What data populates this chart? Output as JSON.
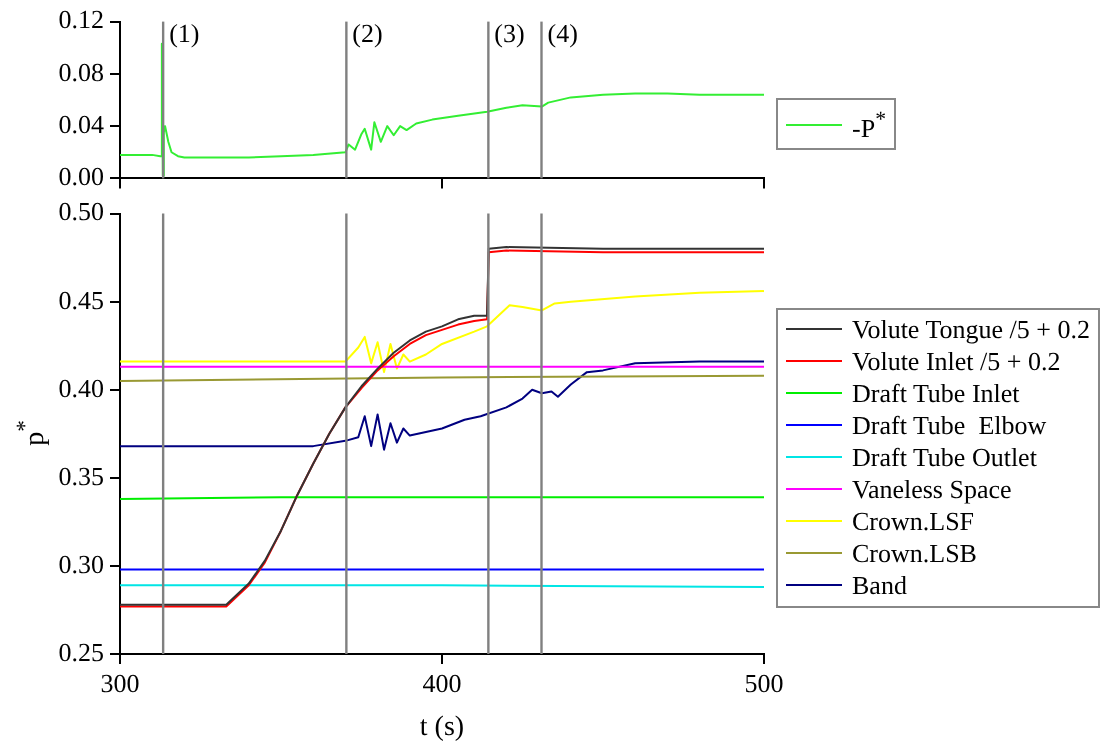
{
  "chart_data": [
    {
      "type": "line",
      "xlim": [
        300,
        500
      ],
      "xticks": [
        300,
        400,
        500
      ],
      "ylim": [
        0,
        0.12
      ],
      "yticks": [
        {
          "value": 0,
          "label": "0.00"
        },
        0.04,
        0.08,
        0.12
      ],
      "tick_labels": "y",
      "grid": false,
      "legend": "right",
      "marker": "none",
      "ref_lines": [
        {
          "axis": "x",
          "value": 313.4,
          "color": "#808080"
        },
        {
          "axis": "x",
          "value": 370.3,
          "color": "#808080"
        },
        {
          "axis": "x",
          "value": 414.4,
          "color": "#808080"
        },
        {
          "axis": "x",
          "value": 430.9,
          "color": "#808080"
        }
      ],
      "annotations": [
        {
          "text": "(1)",
          "x": 313.4,
          "y": 0.11
        },
        {
          "text": "(2)",
          "x": 370.3,
          "y": 0.11
        },
        {
          "text": "(3)",
          "x": 414.4,
          "y": 0.11
        },
        {
          "text": "(4)",
          "x": 430.9,
          "y": 0.11
        }
      ],
      "series": [
        {
          "name": "-P$^{*}$",
          "color": "#33ee33",
          "x": [
            300,
            305,
            310,
            312.5,
            313,
            313.3,
            313.6,
            314,
            315,
            316,
            318,
            320,
            330,
            340,
            350,
            360,
            370,
            371,
            373,
            375,
            376,
            378,
            379,
            381,
            383,
            385,
            387,
            389,
            392,
            397,
            405,
            414,
            420,
            425,
            431,
            433,
            440,
            450,
            460,
            470,
            480,
            490,
            500
          ],
          "values": [
            0.018,
            0.018,
            0.018,
            0.017,
            0.103,
            0.002,
            0.035,
            0.04,
            0.028,
            0.02,
            0.017,
            0.016,
            0.016,
            0.016,
            0.017,
            0.018,
            0.02,
            0.026,
            0.022,
            0.034,
            0.038,
            0.022,
            0.043,
            0.028,
            0.04,
            0.033,
            0.04,
            0.037,
            0.042,
            0.045,
            0.048,
            0.051,
            0.054,
            0.056,
            0.055,
            0.058,
            0.062,
            0.064,
            0.065,
            0.065,
            0.064,
            0.064,
            0.064
          ]
        }
      ]
    },
    {
      "type": "line",
      "xlim": [
        300,
        500
      ],
      "xticks": [
        300,
        400,
        500
      ],
      "ylim": [
        0.25,
        0.5
      ],
      "yticks": [
        0.25,
        {
          "value": 0.3,
          "label": "0.30"
        },
        0.35,
        {
          "value": 0.4,
          "label": "0.40"
        },
        0.45,
        {
          "value": 0.5,
          "label": "0.50"
        }
      ],
      "xlabel": "t (s)",
      "ylabel": "p$^{*}$",
      "grid": false,
      "legend": "right",
      "marker": "none",
      "ref_lines": [
        {
          "axis": "x",
          "value": 313.4,
          "color": "#808080"
        },
        {
          "axis": "x",
          "value": 370.3,
          "color": "#808080"
        },
        {
          "axis": "x",
          "value": 414.4,
          "color": "#808080"
        },
        {
          "axis": "x",
          "value": 430.9,
          "color": "#808080"
        }
      ],
      "series": [
        {
          "name": "Volute Tongue /5 + 0.2",
          "color": "#333333",
          "x": [
            300,
            333,
            340,
            345,
            350,
            355,
            360,
            365,
            370,
            375,
            380,
            385,
            390,
            395,
            400,
            405,
            410,
            414,
            414.5,
            420,
            450,
            500
          ],
          "values": [
            0.278,
            0.278,
            0.29,
            0.303,
            0.32,
            0.34,
            0.358,
            0.375,
            0.39,
            0.402,
            0.412,
            0.421,
            0.428,
            0.433,
            0.436,
            0.44,
            0.442,
            0.442,
            0.48,
            0.481,
            0.48,
            0.48
          ]
        },
        {
          "name": "Volute Inlet /5 + 0.2",
          "color": "#ff0000",
          "x": [
            300,
            333,
            340,
            345,
            350,
            355,
            360,
            365,
            370,
            375,
            380,
            385,
            390,
            395,
            400,
            405,
            410,
            414,
            414.5,
            420,
            450,
            500
          ],
          "values": [
            0.277,
            0.277,
            0.289,
            0.302,
            0.32,
            0.34,
            0.358,
            0.375,
            0.39,
            0.401,
            0.411,
            0.419,
            0.426,
            0.431,
            0.434,
            0.437,
            0.439,
            0.44,
            0.478,
            0.479,
            0.478,
            0.478
          ]
        },
        {
          "name": "Draft Tube Inlet",
          "color": "#00ee00",
          "x": [
            300,
            350,
            400,
            450,
            500
          ],
          "values": [
            0.338,
            0.339,
            0.339,
            0.339,
            0.339
          ]
        },
        {
          "name": "Draft Tube  Elbow",
          "color": "#0000ff",
          "x": [
            300,
            400,
            500
          ],
          "values": [
            0.298,
            0.298,
            0.298
          ]
        },
        {
          "name": "Draft Tube Outlet",
          "color": "#00e5e5",
          "x": [
            300,
            400,
            500
          ],
          "values": [
            0.289,
            0.289,
            0.288
          ]
        },
        {
          "name": "Vaneless Space",
          "color": "#ff00ff",
          "x": [
            300,
            400,
            500
          ],
          "values": [
            0.413,
            0.413,
            0.413
          ]
        },
        {
          "name": "Crown.LSF",
          "color": "#ffff00",
          "x": [
            300,
            370,
            374,
            376,
            378,
            380,
            382,
            384,
            386,
            388,
            390,
            395,
            400,
            410,
            414,
            421,
            425,
            431,
            435,
            440,
            460,
            480,
            500
          ],
          "values": [
            0.416,
            0.416,
            0.424,
            0.43,
            0.415,
            0.427,
            0.41,
            0.426,
            0.412,
            0.42,
            0.416,
            0.42,
            0.426,
            0.433,
            0.436,
            0.448,
            0.447,
            0.445,
            0.449,
            0.45,
            0.453,
            0.455,
            0.456
          ]
        },
        {
          "name": "Crown.LSB",
          "color": "#999933",
          "x": [
            300,
            400,
            500
          ],
          "values": [
            0.405,
            0.407,
            0.408
          ]
        },
        {
          "name": "Band",
          "color": "#000080",
          "x": [
            300,
            360,
            370,
            374,
            376,
            378,
            380,
            382,
            384,
            386,
            388,
            390,
            395,
            400,
            407,
            412,
            420,
            425,
            428,
            431,
            434,
            436,
            440,
            445,
            450,
            460,
            480,
            500
          ],
          "values": [
            0.368,
            0.368,
            0.371,
            0.373,
            0.385,
            0.368,
            0.386,
            0.366,
            0.381,
            0.37,
            0.378,
            0.374,
            0.376,
            0.378,
            0.383,
            0.385,
            0.39,
            0.395,
            0.4,
            0.398,
            0.399,
            0.396,
            0.403,
            0.41,
            0.411,
            0.415,
            0.416,
            0.416
          ]
        }
      ]
    }
  ]
}
